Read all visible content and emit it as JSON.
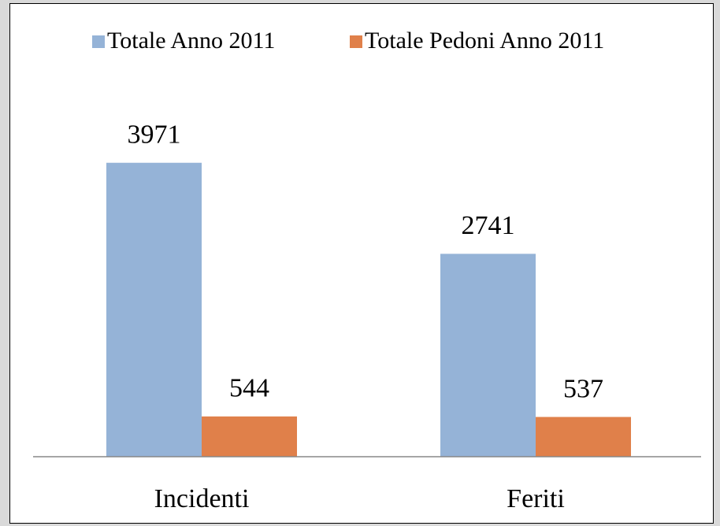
{
  "chart_data": {
    "type": "bar",
    "categories": [
      "Incidenti",
      "Feriti"
    ],
    "series": [
      {
        "name": "Totale Anno 2011",
        "color": "#95b3d7",
        "values": [
          3971,
          2741
        ]
      },
      {
        "name": "Totale Pedoni Anno 2011",
        "color": "#e0804a",
        "values": [
          544,
          537
        ]
      }
    ],
    "ylim": [
      0,
      4500
    ],
    "legend": "top"
  }
}
